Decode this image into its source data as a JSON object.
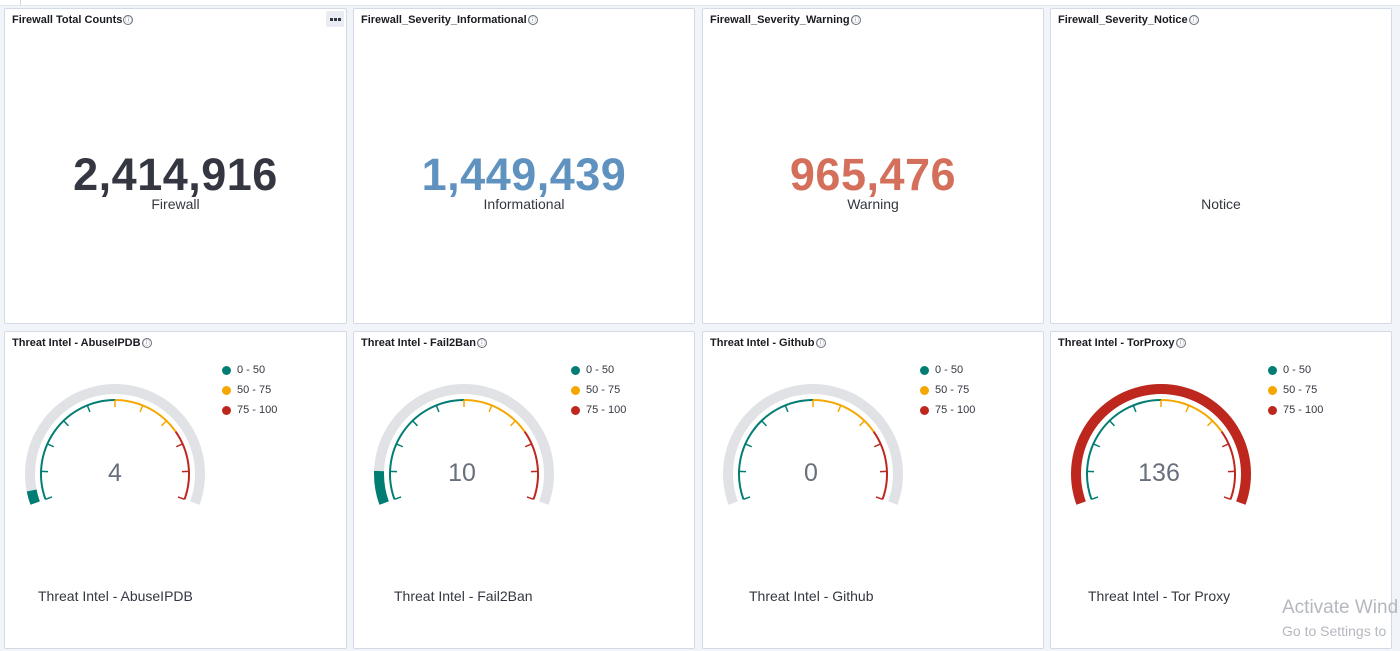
{
  "colors": {
    "firewall": "#343741",
    "informational": "#6092c0",
    "warning": "#d36f5b",
    "range_low": "#017d73",
    "range_mid": "#f5a700",
    "range_high": "#bd271e",
    "track": "#e0e2e6"
  },
  "icons": {
    "info": "ⓘ",
    "panel_menu": "ellipsis-icon"
  },
  "metrics": [
    {
      "title": "Firewall Total Counts",
      "value": "2,414,916",
      "label": "Firewall"
    },
    {
      "title": "Firewall_Severity_Informational",
      "value": "1,449,439",
      "label": "Informational"
    },
    {
      "title": "Firewall_Severity_Warning",
      "value": "965,476",
      "label": "Warning"
    },
    {
      "title": "Firewall_Severity_Notice",
      "value": "",
      "label": "Notice"
    }
  ],
  "gauge_legend": [
    "0 - 50",
    "50 - 75",
    "75 - 100"
  ],
  "gauges": [
    {
      "title": "Threat Intel - AbuseIPDB",
      "value": "4",
      "level": 4,
      "label": "Threat Intel - AbuseIPDB"
    },
    {
      "title": "Threat Intel - Fail2Ban",
      "value": "10",
      "level": 10,
      "label": "Threat Intel - Fail2Ban"
    },
    {
      "title": "Threat Intel - Github",
      "value": "0",
      "level": 0,
      "label": "Threat Intel - Github"
    },
    {
      "title": "Threat Intel - TorProxy",
      "value": "136",
      "level": 136,
      "label": "Threat Intel - Tor Proxy"
    }
  ],
  "gauge_scale": {
    "min": 0,
    "max": 100,
    "bands": [
      50,
      75,
      100
    ]
  },
  "watermark": {
    "line1": "Activate Wind",
    "line2": "Go to Settings to"
  }
}
